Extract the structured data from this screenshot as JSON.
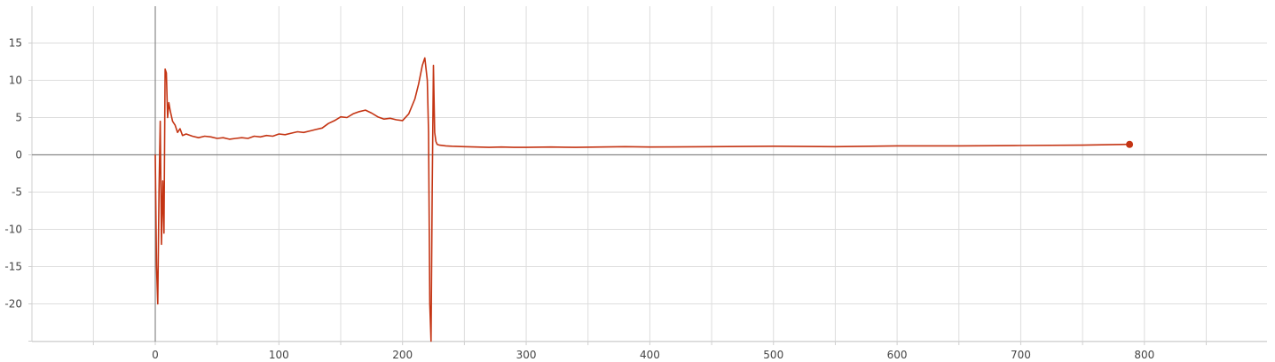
{
  "colors": {
    "series": "#c43413",
    "grid": "#dddddd",
    "zero_axis": "#888888",
    "tick_text": "#444444",
    "background": "#ffffff"
  },
  "chart_data": {
    "type": "line",
    "title": "",
    "xlabel": "",
    "ylabel": "",
    "xlim": [
      -100,
      900
    ],
    "ylim": [
      -25,
      20
    ],
    "grid": true,
    "legend": "none",
    "x_ticks": [
      "0",
      "100",
      "200",
      "300",
      "400",
      "500",
      "600",
      "700",
      "800"
    ],
    "y_ticks": [
      "15",
      "10",
      "5",
      "0",
      "-5",
      "-10",
      "-15",
      "-20"
    ],
    "series": [
      {
        "color": "#c43413",
        "end_marker": true,
        "x": [
          0,
          1,
          2,
          3,
          4,
          5,
          6,
          7,
          8,
          9,
          10,
          11,
          12,
          14,
          16,
          18,
          20,
          22,
          25,
          30,
          35,
          40,
          45,
          50,
          55,
          60,
          65,
          70,
          75,
          80,
          85,
          90,
          95,
          100,
          105,
          110,
          115,
          120,
          125,
          130,
          135,
          140,
          145,
          150,
          155,
          160,
          165,
          170,
          175,
          180,
          185,
          190,
          195,
          200,
          205,
          210,
          213,
          216,
          218,
          220,
          221,
          222,
          223,
          224,
          225,
          226,
          227,
          228,
          230,
          235,
          240,
          250,
          260,
          270,
          280,
          290,
          300,
          320,
          340,
          360,
          380,
          400,
          450,
          500,
          550,
          600,
          650,
          700,
          750,
          788
        ],
        "y": [
          0,
          -15,
          -20,
          -5,
          4.5,
          -12,
          -3.5,
          -10.5,
          11.5,
          11,
          5,
          7,
          6,
          4.5,
          4,
          3,
          3.5,
          2.6,
          2.8,
          2.5,
          2.3,
          2.5,
          2.4,
          2.2,
          2.3,
          2.1,
          2.2,
          2.3,
          2.2,
          2.5,
          2.4,
          2.6,
          2.5,
          2.8,
          2.7,
          2.9,
          3.1,
          3.0,
          3.2,
          3.4,
          3.6,
          4.2,
          4.6,
          5.1,
          5.0,
          5.5,
          5.8,
          6.0,
          5.6,
          5.1,
          4.8,
          4.9,
          4.7,
          4.6,
          5.5,
          7.5,
          9.5,
          12,
          13,
          10,
          3,
          -20,
          -25,
          -5,
          12,
          3,
          1.8,
          1.4,
          1.3,
          1.2,
          1.15,
          1.1,
          1.05,
          1.0,
          1.05,
          1.0,
          1.0,
          1.05,
          1.0,
          1.05,
          1.1,
          1.05,
          1.1,
          1.15,
          1.1,
          1.2,
          1.2,
          1.25,
          1.3,
          1.4
        ]
      }
    ]
  }
}
